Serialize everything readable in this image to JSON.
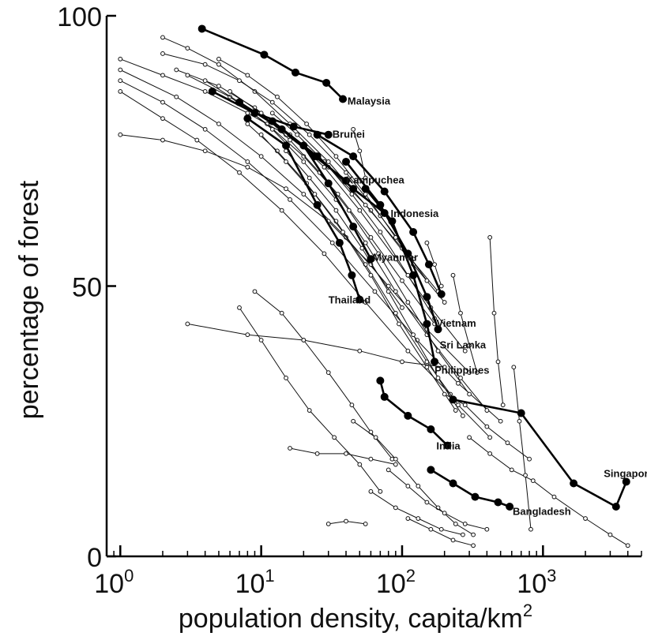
{
  "chart_data": {
    "type": "line",
    "title": "",
    "xlabel_text": "population density, capita/km",
    "xlabel_sup": "2",
    "ylabel": "percentage of forest",
    "x_scale": "log",
    "xlim": [
      0.8,
      5000
    ],
    "ylim": [
      0,
      100
    ],
    "x_ticks": [
      {
        "value": 1,
        "base": "10",
        "exp": "0"
      },
      {
        "value": 10,
        "base": "10",
        "exp": "1"
      },
      {
        "value": 100,
        "base": "10",
        "exp": "2"
      },
      {
        "value": 1000,
        "base": "10",
        "exp": "3"
      }
    ],
    "y_ticks": [
      {
        "value": 0,
        "label": "0"
      },
      {
        "value": 50,
        "label": "50"
      },
      {
        "value": 100,
        "label": "100"
      }
    ],
    "grid": false,
    "legend": "none",
    "highlighted_series": [
      {
        "name": "Malaysia",
        "points": [
          [
            3.8,
            97.6
          ],
          [
            10.5,
            92.8
          ],
          [
            17.5,
            89.5
          ],
          [
            29,
            87.6
          ],
          [
            38,
            84.6
          ]
        ],
        "label_at": [
          41,
          84.3
        ]
      },
      {
        "name": "Brunei",
        "points": [
          [
            4.5,
            86
          ],
          [
            9,
            82
          ],
          [
            17,
            79.5
          ],
          [
            30,
            78
          ]
        ],
        "label_at": [
          32,
          78.2
        ]
      },
      {
        "name": "Kampuchea",
        "points": [
          [
            7,
            84
          ],
          [
            14,
            79
          ],
          [
            24,
            74
          ],
          [
            40,
            69.5
          ]
        ],
        "label_at": [
          40,
          69.7
        ]
      },
      {
        "name": "Indonesia",
        "points": [
          [
            12,
            80.5
          ],
          [
            25,
            74
          ],
          [
            45,
            68
          ],
          [
            75,
            63.5
          ]
        ],
        "label_at": [
          83,
          63.5
        ]
      },
      {
        "name": "Myanmar",
        "points": [
          [
            20,
            76
          ],
          [
            30,
            69
          ],
          [
            45,
            61
          ],
          [
            60,
            55
          ]
        ],
        "label_at": [
          62,
          55.4
        ]
      },
      {
        "name": "Thailand",
        "points": [
          [
            8,
            81
          ],
          [
            15,
            76
          ],
          [
            25,
            65
          ],
          [
            36,
            58
          ],
          [
            44,
            52
          ],
          [
            50,
            47.5
          ]
        ],
        "label_at": [
          30,
          47.5
        ]
      },
      {
        "name": "Vietnam",
        "points": [
          [
            25,
            78
          ],
          [
            45,
            74
          ],
          [
            75,
            67.5
          ],
          [
            120,
            60
          ],
          [
            155,
            54
          ],
          [
            190,
            48.5
          ]
        ],
        "label_at": [
          175,
          43.2
        ]
      },
      {
        "name": "Sri Lanka",
        "points": [
          [
            40,
            73
          ],
          [
            70,
            65
          ],
          [
            110,
            56
          ],
          [
            150,
            48
          ],
          [
            180,
            42
          ]
        ],
        "label_at": [
          185,
          39.2
        ]
      },
      {
        "name": "Philippines",
        "points": [
          [
            55,
            68
          ],
          [
            85,
            62
          ],
          [
            120,
            52
          ],
          [
            150,
            43
          ],
          [
            170,
            36
          ]
        ],
        "label_at": [
          170,
          34.5
        ]
      },
      {
        "name": "India",
        "points": [
          [
            70,
            32.5
          ],
          [
            75,
            29.5
          ],
          [
            110,
            26
          ],
          [
            160,
            23.5
          ],
          [
            210,
            20.5
          ]
        ],
        "label_at": [
          175,
          20.5
        ]
      },
      {
        "name": "Bangladesh",
        "points": [
          [
            160,
            16
          ],
          [
            230,
            13.5
          ],
          [
            330,
            11
          ],
          [
            480,
            10
          ],
          [
            580,
            9.2
          ]
        ],
        "label_at": [
          610,
          8.4
        ]
      },
      {
        "name": "Singapore",
        "points": [
          [
            230,
            29
          ],
          [
            700,
            26.5
          ],
          [
            1650,
            13.5
          ],
          [
            3300,
            9.2
          ],
          [
            3900,
            13.8
          ]
        ],
        "label_at": [
          2700,
          15.4
        ]
      }
    ],
    "other_series": [
      [
        [
          1,
          92
        ],
        [
          2,
          89
        ],
        [
          4,
          86
        ],
        [
          8,
          82
        ],
        [
          15,
          78
        ],
        [
          30,
          72
        ],
        [
          60,
          64
        ],
        [
          120,
          54
        ],
        [
          200,
          47
        ]
      ],
      [
        [
          1,
          90
        ],
        [
          2.5,
          85
        ],
        [
          5,
          80
        ],
        [
          10,
          74
        ],
        [
          20,
          67
        ],
        [
          40,
          59
        ],
        [
          80,
          50
        ],
        [
          150,
          42
        ],
        [
          300,
          34
        ]
      ],
      [
        [
          1,
          88
        ],
        [
          2,
          84
        ],
        [
          4,
          79
        ],
        [
          8,
          73
        ],
        [
          16,
          66
        ],
        [
          32,
          58
        ],
        [
          64,
          49
        ],
        [
          128,
          40
        ],
        [
          250,
          32
        ],
        [
          500,
          25
        ]
      ],
      [
        [
          1,
          86
        ],
        [
          2,
          81
        ],
        [
          3.5,
          77
        ],
        [
          7,
          71
        ],
        [
          14,
          64
        ],
        [
          28,
          56
        ],
        [
          55,
          47
        ],
        [
          110,
          38
        ],
        [
          220,
          30
        ]
      ],
      [
        [
          1,
          78
        ],
        [
          2,
          77
        ],
        [
          4,
          75
        ],
        [
          8,
          72
        ],
        [
          15,
          68
        ],
        [
          30,
          62
        ],
        [
          60,
          54
        ],
        [
          100,
          46
        ]
      ],
      [
        [
          2,
          96
        ],
        [
          3,
          94
        ],
        [
          5,
          91
        ],
        [
          9,
          86
        ],
        [
          16,
          80
        ],
        [
          30,
          73
        ],
        [
          55,
          65
        ],
        [
          100,
          57
        ],
        [
          180,
          49
        ]
      ],
      [
        [
          2,
          93
        ],
        [
          4,
          91
        ],
        [
          7,
          88
        ],
        [
          12,
          84
        ],
        [
          22,
          78
        ],
        [
          40,
          71
        ],
        [
          70,
          63
        ],
        [
          120,
          55
        ]
      ],
      [
        [
          2.5,
          90
        ],
        [
          5,
          87
        ],
        [
          9,
          83
        ],
        [
          16,
          78
        ],
        [
          28,
          72
        ],
        [
          50,
          64
        ],
        [
          90,
          55
        ],
        [
          160,
          46
        ],
        [
          280,
          38
        ]
      ],
      [
        [
          3,
          89
        ],
        [
          6,
          85
        ],
        [
          11,
          80
        ],
        [
          20,
          74
        ],
        [
          35,
          67
        ],
        [
          60,
          59
        ],
        [
          100,
          51
        ],
        [
          170,
          43
        ]
      ],
      [
        [
          4,
          88
        ],
        [
          7,
          84
        ],
        [
          12,
          79
        ],
        [
          20,
          73
        ],
        [
          34,
          66
        ],
        [
          55,
          58
        ],
        [
          90,
          49
        ],
        [
          150,
          41
        ],
        [
          260,
          33
        ],
        [
          400,
          27
        ]
      ],
      [
        [
          5,
          92
        ],
        [
          8,
          89
        ],
        [
          13,
          85
        ],
        [
          21,
          80
        ],
        [
          34,
          74
        ],
        [
          55,
          67
        ],
        [
          90,
          59
        ],
        [
          150,
          51
        ]
      ],
      [
        [
          6,
          86
        ],
        [
          10,
          82
        ],
        [
          16,
          77
        ],
        [
          26,
          71
        ],
        [
          42,
          64
        ],
        [
          68,
          56
        ],
        [
          110,
          47
        ],
        [
          180,
          38
        ],
        [
          300,
          30
        ]
      ],
      [
        [
          8,
          80
        ],
        [
          13,
          75
        ],
        [
          21,
          69
        ],
        [
          34,
          62
        ],
        [
          55,
          54
        ],
        [
          90,
          45
        ],
        [
          150,
          36
        ],
        [
          250,
          28
        ],
        [
          420,
          22
        ]
      ],
      [
        [
          10,
          78
        ],
        [
          15,
          73
        ],
        [
          24,
          67
        ],
        [
          38,
          60
        ],
        [
          60,
          52
        ],
        [
          95,
          43
        ],
        [
          150,
          35
        ],
        [
          240,
          27
        ]
      ],
      [
        [
          12,
          82
        ],
        [
          18,
          78
        ],
        [
          28,
          73
        ],
        [
          44,
          67
        ],
        [
          70,
          60
        ],
        [
          110,
          52
        ],
        [
          170,
          44
        ]
      ],
      [
        [
          15,
          75
        ],
        [
          22,
          70
        ],
        [
          34,
          64
        ],
        [
          52,
          57
        ],
        [
          80,
          49
        ],
        [
          120,
          41
        ],
        [
          180,
          33
        ],
        [
          270,
          26
        ]
      ],
      [
        [
          3,
          43
        ],
        [
          8,
          41
        ],
        [
          20,
          40
        ],
        [
          50,
          38
        ],
        [
          100,
          36
        ],
        [
          200,
          35
        ]
      ],
      [
        [
          7,
          46
        ],
        [
          10,
          40
        ],
        [
          15,
          33
        ],
        [
          22,
          27
        ],
        [
          33,
          22
        ],
        [
          50,
          17
        ],
        [
          70,
          12
        ]
      ],
      [
        [
          9,
          49
        ],
        [
          14,
          45
        ],
        [
          20,
          40
        ],
        [
          30,
          34
        ],
        [
          44,
          28
        ],
        [
          60,
          23
        ],
        [
          85,
          18
        ]
      ],
      [
        [
          16,
          20
        ],
        [
          25,
          19
        ],
        [
          40,
          19
        ],
        [
          60,
          18
        ],
        [
          90,
          17
        ]
      ],
      [
        [
          30,
          6
        ],
        [
          40,
          6.5
        ],
        [
          55,
          6
        ]
      ],
      [
        [
          45,
          25
        ],
        [
          65,
          22
        ],
        [
          90,
          18
        ],
        [
          130,
          13
        ],
        [
          180,
          9
        ],
        [
          240,
          6
        ],
        [
          320,
          4
        ]
      ],
      [
        [
          60,
          12
        ],
        [
          90,
          9
        ],
        [
          130,
          7
        ],
        [
          190,
          5
        ],
        [
          270,
          4
        ]
      ],
      [
        [
          80,
          16
        ],
        [
          110,
          13
        ],
        [
          150,
          10
        ],
        [
          200,
          8
        ],
        [
          280,
          6
        ],
        [
          400,
          5
        ]
      ],
      [
        [
          110,
          7
        ],
        [
          160,
          5
        ],
        [
          230,
          3
        ],
        [
          320,
          2
        ]
      ],
      [
        [
          200,
          30
        ],
        [
          280,
          28
        ],
        [
          400,
          24
        ],
        [
          560,
          21
        ],
        [
          800,
          18
        ]
      ],
      [
        [
          300,
          22
        ],
        [
          420,
          19
        ],
        [
          600,
          16
        ],
        [
          850,
          14
        ],
        [
          1200,
          11
        ],
        [
          2000,
          7
        ],
        [
          3000,
          4
        ],
        [
          4000,
          2
        ]
      ],
      [
        [
          420,
          59
        ],
        [
          450,
          45
        ],
        [
          480,
          36
        ],
        [
          520,
          28
        ]
      ],
      [
        [
          230,
          52
        ],
        [
          260,
          45
        ],
        [
          300,
          39
        ],
        [
          340,
          34
        ]
      ],
      [
        [
          620,
          35
        ],
        [
          680,
          25
        ],
        [
          750,
          15
        ],
        [
          820,
          5
        ]
      ],
      [
        [
          150,
          58
        ],
        [
          170,
          54
        ],
        [
          190,
          50
        ]
      ],
      [
        [
          45,
          79
        ],
        [
          50,
          75
        ],
        [
          55,
          70
        ]
      ]
    ]
  }
}
